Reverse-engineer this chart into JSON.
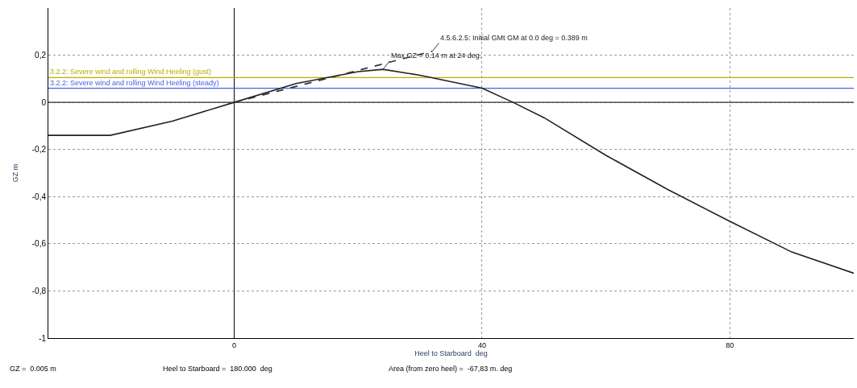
{
  "chart_data": {
    "type": "line",
    "xlabel": "Heel to Starboard  deg",
    "ylabel": "GZ m",
    "xlim": [
      -30,
      100
    ],
    "ylim": [
      -1,
      0.4
    ],
    "xticks": [
      0,
      40,
      80
    ],
    "yticks": [
      {
        "value": 0.2,
        "label": "0,2"
      },
      0,
      {
        "value": -0.2,
        "label": "-0,2"
      },
      {
        "value": -0.4,
        "label": "-0,4"
      },
      {
        "value": -0.6,
        "label": "-0,6"
      },
      {
        "value": -0.8,
        "label": "-0,8"
      },
      -1
    ],
    "grid": true,
    "marker": "none",
    "series": [
      {
        "color": "#222222",
        "line_style": "solid",
        "x": [
          -30,
          -20,
          -10,
          0,
          10,
          20,
          24,
          30,
          40,
          45,
          50,
          60,
          70,
          80,
          90,
          100
        ],
        "values": [
          -0.14,
          -0.14,
          -0.08,
          0,
          0.08,
          0.13,
          0.14,
          0.115,
          0.06,
          0,
          -0.065,
          -0.225,
          -0.37,
          -0.505,
          -0.635,
          -0.725
        ]
      },
      {
        "color": "#333333",
        "line_style": "dashed",
        "x": [
          0,
          32
        ],
        "values": [
          0,
          0.217
        ]
      }
    ],
    "ref_lines": [
      {
        "axis": "x",
        "value": 0,
        "color": "#202020",
        "line_style": "solid"
      },
      {
        "axis": "y",
        "value": 0,
        "color": "#303030",
        "line_style": "solid"
      },
      {
        "axis": "y",
        "value": 0.105,
        "color": "#b8b000",
        "line_style": "solid",
        "label": "3.2.2: Severe wind and rolling Wind Heeling (gust)"
      },
      {
        "axis": "y",
        "value": 0.06,
        "color": "#4a62e0",
        "line_style": "solid",
        "label": "3.2.2: Severe wind and rolling Wind Heeling (steady)"
      }
    ],
    "annotations": [
      {
        "text": "4.5.6.2.5: Initial GMt GM at 0.0 deg = 0.389 m",
        "x": 32,
        "y": 0.217
      },
      {
        "text": "Max GZ = 0.14 m at 24 deg.",
        "x": 24,
        "y": 0.14
      },
      "GZ =  0.005 m",
      "Heel to Starboard =  180.000  deg",
      "Area (from zero heel) =  -67,83 m. deg"
    ]
  }
}
